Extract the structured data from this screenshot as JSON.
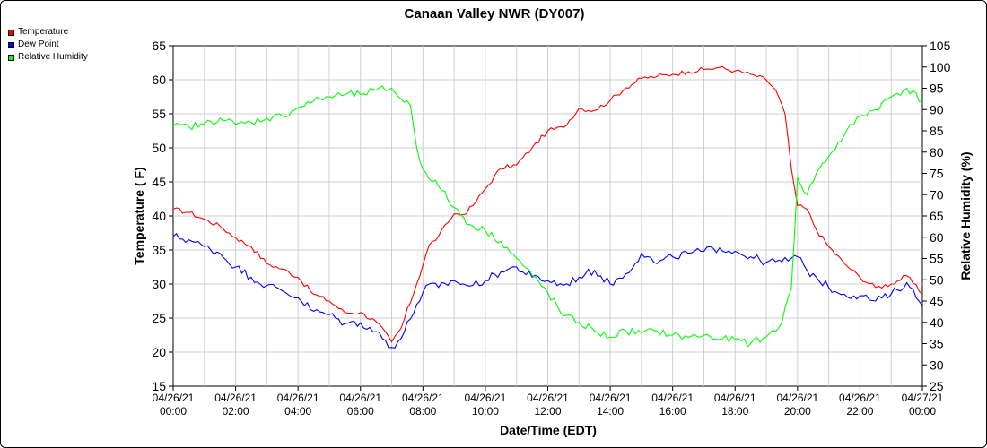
{
  "chart_data": {
    "type": "line",
    "title": "Canaan Valley NWR (DY007)",
    "xlabel": "Date/Time (EDT)",
    "ylabel": "Temperature ( F)",
    "y2label": "Relative Humidity (%)",
    "ylim": [
      15,
      65
    ],
    "y2lim": [
      25,
      105
    ],
    "yticks": [
      15,
      20,
      25,
      30,
      35,
      40,
      45,
      50,
      55,
      60,
      65
    ],
    "y2ticks": [
      25,
      30,
      35,
      40,
      45,
      50,
      55,
      60,
      65,
      70,
      75,
      80,
      85,
      90,
      95,
      100,
      105
    ],
    "xlim_hours": [
      0,
      24
    ],
    "xticks": [
      {
        "h": 0,
        "date": "04/26/21",
        "time": "00:00"
      },
      {
        "h": 2,
        "date": "04/26/21",
        "time": "02:00"
      },
      {
        "h": 4,
        "date": "04/26/21",
        "time": "04:00"
      },
      {
        "h": 6,
        "date": "04/26/21",
        "time": "06:00"
      },
      {
        "h": 8,
        "date": "04/26/21",
        "time": "08:00"
      },
      {
        "h": 10,
        "date": "04/26/21",
        "time": "10:00"
      },
      {
        "h": 12,
        "date": "04/26/21",
        "time": "12:00"
      },
      {
        "h": 14,
        "date": "04/26/21",
        "time": "14:00"
      },
      {
        "h": 16,
        "date": "04/26/21",
        "time": "16:00"
      },
      {
        "h": 18,
        "date": "04/26/21",
        "time": "18:00"
      },
      {
        "h": 20,
        "date": "04/26/21",
        "time": "20:00"
      },
      {
        "h": 22,
        "date": "04/26/21",
        "time": "22:00"
      },
      {
        "h": 24,
        "date": "04/27/21",
        "time": "00:00"
      }
    ],
    "grid": true,
    "legend_position": "top-left",
    "series": [
      {
        "name": "Temperature",
        "color": "#ff0000",
        "axis": "left",
        "points": [
          [
            0,
            41
          ],
          [
            0.5,
            40.5
          ],
          [
            1,
            39.5
          ],
          [
            1.5,
            38.5
          ],
          [
            2,
            36.8
          ],
          [
            2.5,
            35.5
          ],
          [
            3,
            33
          ],
          [
            3.5,
            32.2
          ],
          [
            4,
            31
          ],
          [
            4.5,
            28.5
          ],
          [
            5,
            27.5
          ],
          [
            5.5,
            25.8
          ],
          [
            6,
            25.8
          ],
          [
            6.5,
            24.5
          ],
          [
            7,
            21.5
          ],
          [
            7.3,
            23.5
          ],
          [
            7.8,
            30
          ],
          [
            8.2,
            35.7
          ],
          [
            8.5,
            37
          ],
          [
            8.8,
            39
          ],
          [
            9,
            40.3
          ],
          [
            9.3,
            40.2
          ],
          [
            9.6,
            41.5
          ],
          [
            10,
            44
          ],
          [
            10.5,
            47
          ],
          [
            11,
            47.5
          ],
          [
            11.5,
            50
          ],
          [
            12,
            52.5
          ],
          [
            12.5,
            53
          ],
          [
            13,
            55.8
          ],
          [
            13.5,
            55.5
          ],
          [
            14,
            57
          ],
          [
            14.5,
            58.8
          ],
          [
            15,
            60.2
          ],
          [
            15.5,
            60.5
          ],
          [
            16,
            60.8
          ],
          [
            16.5,
            61.2
          ],
          [
            17,
            61.5
          ],
          [
            17.5,
            61.8
          ],
          [
            18,
            61.3
          ],
          [
            18.5,
            60.8
          ],
          [
            19,
            60
          ],
          [
            19.3,
            58.5
          ],
          [
            19.6,
            55
          ],
          [
            19.8,
            47
          ],
          [
            20,
            41.5
          ],
          [
            20.3,
            41
          ],
          [
            20.6,
            38
          ],
          [
            21,
            35.5
          ],
          [
            21.5,
            33
          ],
          [
            22,
            31
          ],
          [
            22.5,
            29.5
          ],
          [
            23,
            30
          ],
          [
            23.5,
            31.2
          ],
          [
            24,
            28.5
          ]
        ]
      },
      {
        "name": "Dew Point",
        "color": "#0000ff",
        "axis": "left",
        "points": [
          [
            0,
            37
          ],
          [
            0.5,
            36.5
          ],
          [
            1,
            35.5
          ],
          [
            1.5,
            34.5
          ],
          [
            2,
            32.5
          ],
          [
            2.5,
            31
          ],
          [
            3,
            29.8
          ],
          [
            3.5,
            29
          ],
          [
            4,
            28
          ],
          [
            4.5,
            26
          ],
          [
            5,
            25.5
          ],
          [
            5.5,
            24.2
          ],
          [
            6,
            24.3
          ],
          [
            6.5,
            23
          ],
          [
            7,
            20.7
          ],
          [
            7.3,
            22
          ],
          [
            7.8,
            27
          ],
          [
            8.2,
            30
          ],
          [
            8.5,
            29.5
          ],
          [
            9,
            30.5
          ],
          [
            9.5,
            29.7
          ],
          [
            10,
            30.5
          ],
          [
            10.5,
            31.8
          ],
          [
            11,
            32.5
          ],
          [
            11.5,
            31
          ],
          [
            12,
            30.5
          ],
          [
            12.5,
            29.8
          ],
          [
            13,
            31
          ],
          [
            13.5,
            32
          ],
          [
            14,
            30
          ],
          [
            14.5,
            31.5
          ],
          [
            15,
            34.5
          ],
          [
            15.5,
            33
          ],
          [
            16,
            34
          ],
          [
            16.5,
            34.5
          ],
          [
            17,
            34.8
          ],
          [
            17.5,
            35.3
          ],
          [
            18,
            34.8
          ],
          [
            18.5,
            34
          ],
          [
            19,
            33.2
          ],
          [
            19.5,
            33.3
          ],
          [
            20,
            34
          ],
          [
            20.3,
            32
          ],
          [
            20.6,
            31
          ],
          [
            21,
            29.5
          ],
          [
            21.5,
            28.5
          ],
          [
            22,
            28.3
          ],
          [
            22.5,
            27.5
          ],
          [
            23,
            28.5
          ],
          [
            23.5,
            30.2
          ],
          [
            24,
            26.8
          ]
        ]
      },
      {
        "name": "Relative Humidity",
        "color": "#00ff00",
        "axis": "right",
        "points": [
          [
            0,
            86
          ],
          [
            0.5,
            86
          ],
          [
            1,
            86.5
          ],
          [
            1.5,
            88
          ],
          [
            2,
            86.5
          ],
          [
            2.5,
            87
          ],
          [
            3,
            88
          ],
          [
            3.5,
            88.5
          ],
          [
            4,
            90.5
          ],
          [
            4.5,
            92
          ],
          [
            5,
            93
          ],
          [
            5.5,
            93.5
          ],
          [
            6,
            93.5
          ],
          [
            6.5,
            94.5
          ],
          [
            7,
            95
          ],
          [
            7.3,
            92.5
          ],
          [
            7.6,
            91
          ],
          [
            7.8,
            81
          ],
          [
            8,
            76
          ],
          [
            8.5,
            72
          ],
          [
            9,
            67
          ],
          [
            9.5,
            63
          ],
          [
            10,
            61.5
          ],
          [
            10.5,
            59
          ],
          [
            11,
            55
          ],
          [
            11.5,
            51
          ],
          [
            12,
            47
          ],
          [
            12.5,
            41.5
          ],
          [
            13,
            40
          ],
          [
            13.5,
            38
          ],
          [
            14,
            36.5
          ],
          [
            14.5,
            38
          ],
          [
            15,
            37.5
          ],
          [
            15.5,
            38
          ],
          [
            16,
            37
          ],
          [
            16.5,
            36.5
          ],
          [
            17,
            37
          ],
          [
            17.5,
            36
          ],
          [
            18,
            36
          ],
          [
            18.5,
            35
          ],
          [
            19,
            36.5
          ],
          [
            19.5,
            40
          ],
          [
            19.8,
            48
          ],
          [
            20,
            74
          ],
          [
            20.3,
            70
          ],
          [
            20.6,
            75
          ],
          [
            21,
            79
          ],
          [
            21.5,
            84
          ],
          [
            22,
            88.5
          ],
          [
            22.5,
            90
          ],
          [
            23,
            93
          ],
          [
            23.5,
            95
          ],
          [
            24,
            92
          ]
        ]
      }
    ]
  }
}
